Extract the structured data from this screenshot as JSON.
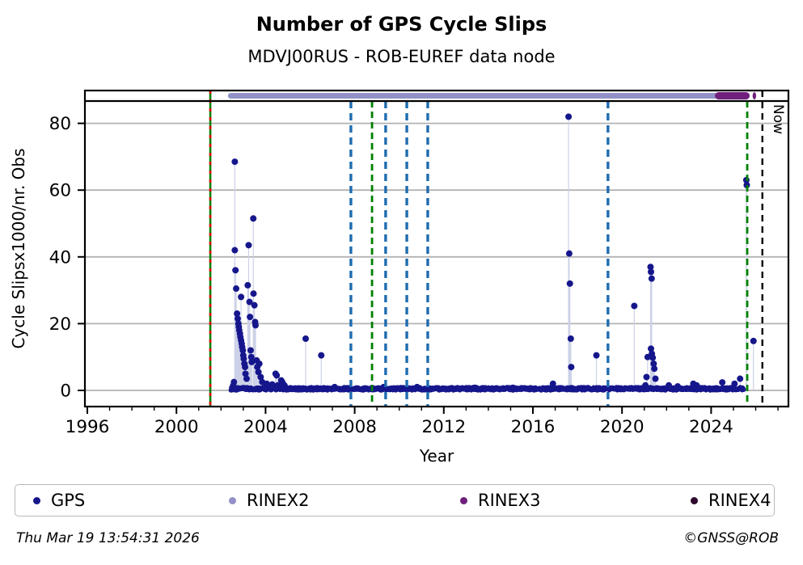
{
  "title": "Number of GPS Cycle Slips",
  "subtitle": "MDVJ00RUS - ROB-EUREF data node",
  "footer": {
    "timestamp": "Thu Mar 19 13:54:31 2026",
    "copyright": "©GNSS@ROB"
  },
  "legend": {
    "items": [
      {
        "label": "GPS",
        "color": "#16168c"
      },
      {
        "label": "RINEX2",
        "color": "#9191c8"
      },
      {
        "label": "RINEX3",
        "color": "#701f7d"
      },
      {
        "label": "RINEX4",
        "color": "#2e0a2e"
      }
    ]
  },
  "chart_data": {
    "type": "scatter",
    "title": "Number of GPS Cycle Slips",
    "subtitle": "MDVJ00RUS - ROB-EUREF data node",
    "xlabel": "Year",
    "ylabel": "Cycle Slipsx1000/nr. Obs",
    "xlim": [
      1995.9,
      2027.5
    ],
    "ylim": [
      -2.5,
      89.5
    ],
    "x_ticks": [
      1996,
      2000,
      2004,
      2008,
      2012,
      2016,
      2020,
      2024
    ],
    "x_minor_tick_step": 1,
    "y_ticks": [
      0,
      20,
      40,
      60,
      80
    ],
    "grid": "horizontal",
    "grid_color": "#b3b3b3",
    "marker_color": "#16168c",
    "stem_color": "#ccd1e8",
    "series": [
      {
        "name": "GPS",
        "points": [
          [
            2002.55,
            1.5
          ],
          [
            2002.58,
            2.5
          ],
          [
            2002.62,
            68.5
          ],
          [
            2002.62,
            42
          ],
          [
            2002.65,
            36
          ],
          [
            2002.68,
            30.5
          ],
          [
            2002.72,
            23
          ],
          [
            2002.75,
            21.5
          ],
          [
            2002.78,
            20
          ],
          [
            2002.8,
            19
          ],
          [
            2002.82,
            18
          ],
          [
            2002.85,
            17
          ],
          [
            2002.87,
            16
          ],
          [
            2002.9,
            28
          ],
          [
            2002.9,
            15
          ],
          [
            2002.93,
            14
          ],
          [
            2002.95,
            13
          ],
          [
            2002.98,
            12
          ],
          [
            2003.0,
            10.5
          ],
          [
            2003.02,
            9.5
          ],
          [
            2003.05,
            8
          ],
          [
            2003.08,
            7
          ],
          [
            2003.1,
            5
          ],
          [
            2003.15,
            3.5
          ],
          [
            2003.2,
            31.5
          ],
          [
            2003.24,
            43.5
          ],
          [
            2003.28,
            26.5
          ],
          [
            2003.3,
            22
          ],
          [
            2003.33,
            12
          ],
          [
            2003.36,
            10
          ],
          [
            2003.38,
            8.5
          ],
          [
            2003.45,
            51.5
          ],
          [
            2003.46,
            29
          ],
          [
            2003.5,
            25.5
          ],
          [
            2003.53,
            20.5
          ],
          [
            2003.55,
            19.5
          ],
          [
            2003.6,
            9
          ],
          [
            2003.63,
            7
          ],
          [
            2003.68,
            5.5
          ],
          [
            2003.72,
            8
          ],
          [
            2003.78,
            4
          ],
          [
            2003.85,
            2.5
          ],
          [
            2004.05,
            2
          ],
          [
            2004.3,
            1.8
          ],
          [
            2004.45,
            5
          ],
          [
            2004.5,
            4.5
          ],
          [
            2004.55,
            1.5
          ],
          [
            2004.7,
            3
          ],
          [
            2004.75,
            2.5
          ],
          [
            2004.85,
            1.5
          ],
          [
            2005.8,
            15.5
          ],
          [
            2006.5,
            10.5
          ],
          [
            2007.1,
            1
          ],
          [
            2009.3,
            1
          ],
          [
            2010.8,
            1
          ],
          [
            2013.4,
            0.8
          ],
          [
            2015.1,
            0.8
          ],
          [
            2016.9,
            2
          ],
          [
            2017.6,
            82
          ],
          [
            2017.63,
            41
          ],
          [
            2017.66,
            32
          ],
          [
            2017.7,
            15.5
          ],
          [
            2017.72,
            7
          ],
          [
            2018.85,
            10.5
          ],
          [
            2020.55,
            25.3
          ],
          [
            2021.05,
            1.5
          ],
          [
            2021.1,
            4
          ],
          [
            2021.15,
            10
          ],
          [
            2021.28,
            37
          ],
          [
            2021.3,
            35.5
          ],
          [
            2021.33,
            33.5
          ],
          [
            2021.3,
            12.5
          ],
          [
            2021.34,
            11
          ],
          [
            2021.38,
            9.8
          ],
          [
            2021.42,
            8
          ],
          [
            2021.45,
            6.5
          ],
          [
            2021.5,
            3.5
          ],
          [
            2022.1,
            1.5
          ],
          [
            2022.5,
            1.2
          ],
          [
            2023.2,
            2
          ],
          [
            2023.35,
            1.5
          ],
          [
            2024.5,
            2.4
          ],
          [
            2025.05,
            2
          ],
          [
            2025.3,
            3.5
          ],
          [
            2025.58,
            63
          ],
          [
            2025.6,
            61.5
          ],
          [
            2025.9,
            14.8
          ]
        ]
      }
    ],
    "baseline": {
      "x_start": 2002.45,
      "x_end": 2025.45,
      "step": 0.02,
      "max_value": 0.9
    },
    "availability_bands": [
      {
        "label": "RINEX2",
        "start": 2002.31,
        "end": 2024.31,
        "color": "#9191c8",
        "thickness": 7
      },
      {
        "label": "RINEX3",
        "start": 2024.17,
        "end": 2025.73,
        "color": "#701f7d",
        "thickness": 9
      },
      {
        "label": "RINEX3",
        "start": 2025.86,
        "end": 2026.02,
        "color": "#701f7d",
        "thickness": 9
      }
    ],
    "event_lines": [
      {
        "x": 2001.52,
        "color": "#008000",
        "style": "solid",
        "width": 2.6,
        "full": true
      },
      {
        "x": 2001.52,
        "color": "#e10000",
        "style": "dashed",
        "dash": "4,7",
        "width": 2.6,
        "full": true
      },
      {
        "x": 2007.83,
        "color": "#1f6cb0",
        "style": "dashed",
        "dash": "9,6",
        "width": 3.4
      },
      {
        "x": 2008.78,
        "color": "#008000",
        "style": "dashed",
        "dash": "8,5",
        "width": 2.8
      },
      {
        "x": 2009.39,
        "color": "#1f6cb0",
        "style": "dashed",
        "dash": "9,6",
        "width": 3.4
      },
      {
        "x": 2010.34,
        "color": "#1f6cb0",
        "style": "dashed",
        "dash": "9,6",
        "width": 3.4
      },
      {
        "x": 2011.28,
        "color": "#1f6cb0",
        "style": "dashed",
        "dash": "9,6",
        "width": 3.4
      },
      {
        "x": 2019.37,
        "color": "#1f6cb0",
        "style": "dashed",
        "dash": "9,6",
        "width": 3.4
      },
      {
        "x": 2025.62,
        "color": "#008000",
        "style": "dashed",
        "dash": "8,5",
        "width": 2.8
      },
      {
        "x": 2026.3,
        "color": "#000000",
        "style": "dashed",
        "dash": "8,6",
        "width": 2.4,
        "label": "Now",
        "full": true
      }
    ],
    "now_label": "Now"
  }
}
